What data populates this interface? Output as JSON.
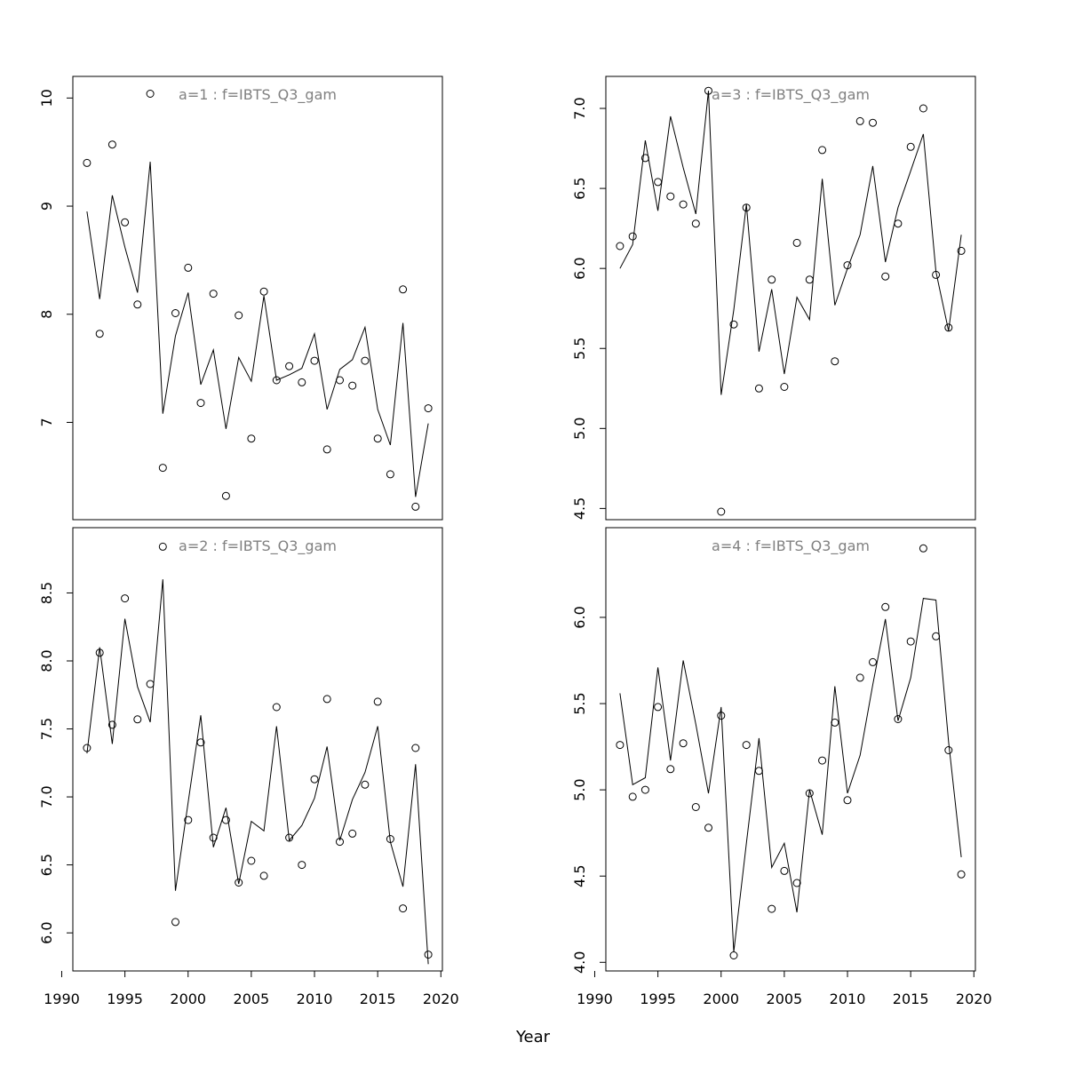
{
  "chart_data": {
    "type": "line",
    "layout": "2x2",
    "xlabel": "Year",
    "xlim": [
      1990,
      2020
    ],
    "xticks": [
      1990,
      1995,
      2000,
      2005,
      2010,
      2015,
      2020
    ],
    "x": [
      1992,
      1993,
      1994,
      1995,
      1996,
      1997,
      1998,
      1999,
      2000,
      2001,
      2002,
      2003,
      2004,
      2005,
      2006,
      2007,
      2008,
      2009,
      2010,
      2011,
      2012,
      2013,
      2014,
      2015,
      2016,
      2017,
      2018,
      2019
    ],
    "panels": [
      {
        "title": "a=1  :  f=IBTS_Q3_gam",
        "ylim": [
          6.1,
          10.2
        ],
        "yticks": [
          7,
          8,
          9,
          10
        ],
        "series": [
          {
            "kind": "points",
            "values": [
              9.4,
              7.82,
              9.57,
              8.85,
              8.09,
              10.04,
              6.58,
              8.01,
              8.43,
              7.18,
              8.19,
              6.32,
              7.99,
              6.85,
              8.21,
              7.39,
              7.52,
              7.37,
              7.57,
              6.75,
              7.39,
              7.34,
              7.57,
              6.85,
              6.52,
              8.23,
              6.22,
              7.13
            ]
          },
          {
            "kind": "line",
            "values": [
              8.95,
              8.14,
              9.1,
              8.62,
              8.2,
              9.41,
              7.08,
              7.8,
              8.2,
              7.35,
              7.67,
              6.94,
              7.6,
              7.38,
              8.17,
              7.39,
              7.44,
              7.5,
              7.82,
              7.12,
              7.49,
              7.58,
              7.88,
              7.12,
              6.79,
              7.92,
              6.31,
              6.99
            ]
          }
        ]
      },
      {
        "title": "a=3  :  f=IBTS_Q3_gam",
        "ylim": [
          4.43,
          7.2
        ],
        "yticks": [
          4.5,
          5.0,
          5.5,
          6.0,
          6.5,
          7.0
        ],
        "series": [
          {
            "kind": "points",
            "values": [
              6.14,
              6.2,
              6.69,
              6.54,
              6.45,
              6.4,
              6.28,
              7.11,
              4.48,
              5.65,
              6.38,
              5.25,
              5.93,
              5.26,
              6.16,
              5.93,
              6.74,
              5.42,
              6.02,
              6.92,
              6.91,
              5.95,
              6.28,
              6.76,
              7.0,
              5.96,
              5.63,
              6.11
            ]
          },
          {
            "kind": "line",
            "values": [
              6.0,
              6.15,
              6.8,
              6.36,
              6.95,
              6.63,
              6.34,
              7.11,
              5.21,
              5.74,
              6.4,
              5.48,
              5.87,
              5.34,
              5.82,
              5.68,
              6.56,
              5.77,
              6.0,
              6.21,
              6.64,
              6.04,
              6.38,
              6.61,
              6.84,
              5.98,
              5.61,
              6.21
            ]
          }
        ]
      },
      {
        "title": "a=2  :  f=IBTS_Q3_gam",
        "ylim": [
          5.72,
          8.98
        ],
        "yticks": [
          6.0,
          6.5,
          7.0,
          7.5,
          8.0,
          8.5
        ],
        "series": [
          {
            "kind": "points",
            "values": [
              7.36,
              8.06,
              7.53,
              8.46,
              7.57,
              7.83,
              8.84,
              6.08,
              6.83,
              7.4,
              6.7,
              6.83,
              6.37,
              6.53,
              6.42,
              7.66,
              6.7,
              6.5,
              7.13,
              7.72,
              6.67,
              6.73,
              7.09,
              7.7,
              6.69,
              6.18,
              7.36,
              5.84
            ]
          },
          {
            "kind": "line",
            "values": [
              7.32,
              8.1,
              7.39,
              8.31,
              7.81,
              7.55,
              8.6,
              6.31,
              6.96,
              7.6,
              6.63,
              6.92,
              6.36,
              6.82,
              6.75,
              7.52,
              6.68,
              6.79,
              6.99,
              7.37,
              6.68,
              6.98,
              7.18,
              7.52,
              6.67,
              6.34,
              7.24,
              5.77
            ]
          }
        ]
      },
      {
        "title": "a=4  :  f=IBTS_Q3_gam",
        "ylim": [
          3.95,
          6.52
        ],
        "yticks": [
          4.0,
          4.5,
          5.0,
          5.5,
          6.0
        ],
        "series": [
          {
            "kind": "points",
            "values": [
              5.26,
              4.96,
              5.0,
              5.48,
              5.12,
              5.27,
              4.9,
              4.78,
              5.43,
              4.04,
              5.26,
              5.11,
              4.31,
              4.53,
              4.46,
              4.98,
              5.17,
              5.39,
              4.94,
              5.65,
              5.74,
              6.06,
              5.41,
              5.86,
              6.4,
              5.89,
              5.23,
              4.51
            ]
          },
          {
            "kind": "line",
            "values": [
              5.56,
              5.03,
              5.07,
              5.71,
              5.17,
              5.75,
              5.38,
              4.98,
              5.48,
              4.06,
              4.69,
              5.3,
              4.55,
              4.69,
              4.29,
              5.0,
              4.74,
              5.6,
              4.98,
              5.2,
              5.61,
              5.99,
              5.4,
              5.65,
              6.11,
              6.1,
              5.28,
              4.61
            ]
          }
        ]
      }
    ]
  }
}
